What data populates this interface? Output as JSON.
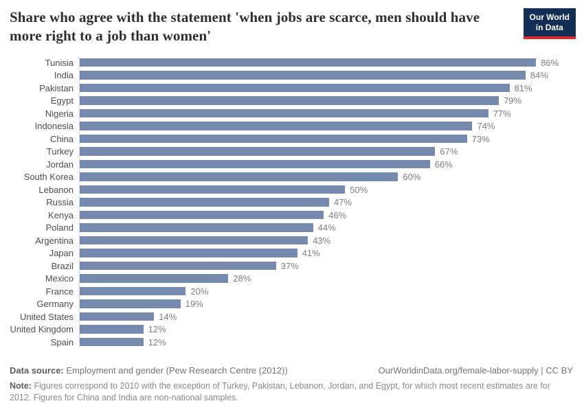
{
  "header": {
    "title": "Share who agree with the statement 'when jobs are scarce, men should have more right to a job than women'",
    "logo": {
      "line1": "Our World",
      "line2": "in Data",
      "bg_color": "#132e54",
      "accent_color": "#e0242b"
    }
  },
  "chart_data": {
    "type": "bar",
    "orientation": "horizontal",
    "title": "Share who agree with the statement 'when jobs are scarce, men should have more right to a job than women'",
    "categories": [
      "Tunisia",
      "India",
      "Pakistan",
      "Egypt",
      "Nigeria",
      "Indonesia",
      "China",
      "Turkey",
      "Jordan",
      "South Korea",
      "Lebanon",
      "Russia",
      "Kenya",
      "Poland",
      "Argentina",
      "Japan",
      "Brazil",
      "Mexico",
      "France",
      "Germany",
      "United States",
      "United Kingdom",
      "Spain"
    ],
    "values": [
      86,
      84,
      81,
      79,
      77,
      74,
      73,
      67,
      66,
      60,
      50,
      47,
      46,
      44,
      43,
      41,
      37,
      28,
      20,
      19,
      14,
      12,
      12
    ],
    "value_suffix": "%",
    "xlim": [
      0,
      86
    ],
    "bar_color": "#768ab0",
    "grid": false,
    "legend": "none"
  },
  "footer": {
    "datasource_label": "Data source:",
    "datasource_text": "Employment and gender (Pew Research Centre (2012))",
    "link_text": "OurWorldinData.org/female-labor-supply | CC BY",
    "note_label": "Note:",
    "note_text": "Figures correspond to 2010 with the exception of Turkey, Pakistan, Lebanon, Jordan, and Egypt, for which most recent estimates are for 2012. Figures for China and India are non-national samples."
  }
}
